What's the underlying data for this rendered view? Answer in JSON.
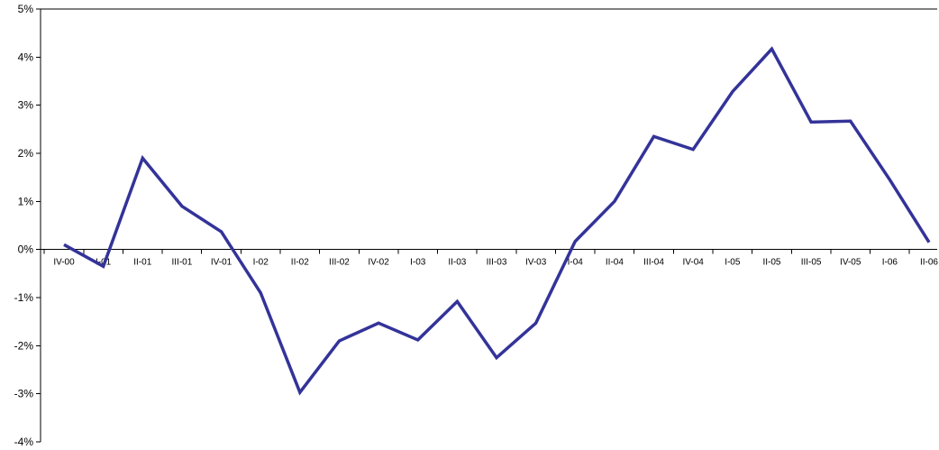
{
  "chart_data": {
    "type": "line",
    "title": "",
    "xlabel": "",
    "ylabel": "",
    "ylim": [
      -4,
      5
    ],
    "yticks": [
      "-4%",
      "-3%",
      "-2%",
      "-1%",
      "0%",
      "1%",
      "2%",
      "3%",
      "4%",
      "5%"
    ],
    "ytick_values": [
      -4,
      -3,
      -2,
      -1,
      0,
      1,
      2,
      3,
      4,
      5
    ],
    "grid": false,
    "legend": "none",
    "categories": [
      "IV-00",
      "I-01",
      "II-01",
      "III-01",
      "IV-01",
      "I-02",
      "II-02",
      "III-02",
      "IV-02",
      "I-03",
      "II-03",
      "III-03",
      "IV-03",
      "I-04",
      "II-04",
      "III-04",
      "IV-04",
      "I-05",
      "II-05",
      "III-05",
      "IV-05",
      "I-06",
      "II-06"
    ],
    "series": [
      {
        "color": "#333399",
        "values": [
          0.1,
          -0.35,
          1.9,
          0.9,
          0.37,
          -0.9,
          -2.97,
          -1.9,
          -1.53,
          -1.88,
          -1.08,
          -2.25,
          -1.53,
          0.17,
          1.0,
          2.35,
          2.08,
          3.28,
          4.17,
          2.65,
          2.67,
          1.45,
          0.15
        ]
      }
    ]
  }
}
